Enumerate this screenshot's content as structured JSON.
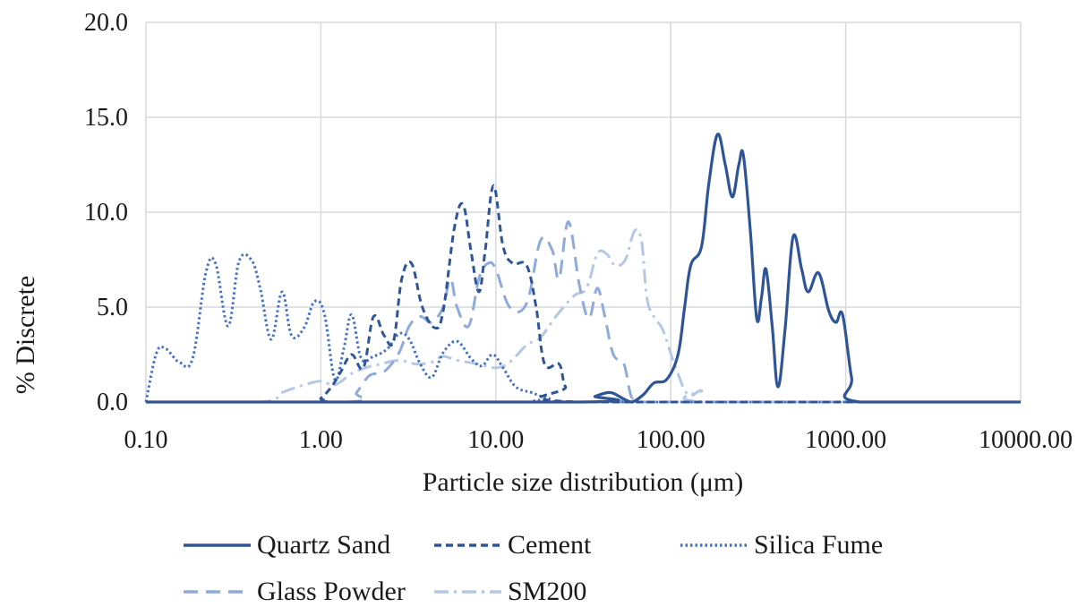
{
  "chart_data": {
    "type": "line",
    "title": "",
    "xlabel": "Particle size distribution (μm)",
    "ylabel": "% Discrete",
    "x_scale": "log",
    "xlim": [
      0.1,
      10000
    ],
    "ylim": [
      0,
      20
    ],
    "x_ticks": [
      0.1,
      1,
      10,
      100,
      1000,
      10000
    ],
    "x_tick_labels": [
      "0.10",
      "1.00",
      "10.00",
      "100.00",
      "1000.00",
      "10000.00"
    ],
    "y_ticks": [
      0,
      5,
      10,
      15,
      20
    ],
    "y_tick_labels": [
      "0.0",
      "5.0",
      "10.0",
      "15.0",
      "20.0"
    ],
    "grid": "major x and y",
    "legend_position": "bottom",
    "series": [
      {
        "name": "Quartz Sand",
        "color": "#2f5597",
        "style": "solid",
        "points": [
          [
            0.1,
            0
          ],
          [
            30,
            0
          ],
          [
            37,
            0.3
          ],
          [
            45,
            0.5
          ],
          [
            53,
            0.2
          ],
          [
            60,
            0
          ],
          [
            70,
            0.4
          ],
          [
            80,
            1
          ],
          [
            95,
            1.2
          ],
          [
            110,
            2.5
          ],
          [
            120,
            5
          ],
          [
            130,
            7.2
          ],
          [
            150,
            8.2
          ],
          [
            165,
            11.5
          ],
          [
            185,
            14.1
          ],
          [
            205,
            12.5
          ],
          [
            225,
            10.8
          ],
          [
            245,
            12.5
          ],
          [
            260,
            13
          ],
          [
            285,
            9
          ],
          [
            310,
            4.4
          ],
          [
            330,
            5.5
          ],
          [
            350,
            7
          ],
          [
            380,
            4
          ],
          [
            410,
            0.8
          ],
          [
            450,
            3.8
          ],
          [
            500,
            8.7
          ],
          [
            560,
            7
          ],
          [
            610,
            5.8
          ],
          [
            700,
            6.8
          ],
          [
            800,
            4.8
          ],
          [
            880,
            4.2
          ],
          [
            960,
            4.6
          ],
          [
            1080,
            1.3
          ],
          [
            1200,
            0
          ],
          [
            10000,
            0
          ]
        ]
      },
      {
        "name": "Cement",
        "color": "#2f5597",
        "style": "dashed",
        "points": [
          [
            0.1,
            0
          ],
          [
            0.9,
            0
          ],
          [
            1.0,
            0.2
          ],
          [
            1.15,
            0.8
          ],
          [
            1.3,
            1.6
          ],
          [
            1.5,
            2.5
          ],
          [
            1.75,
            1.8
          ],
          [
            2.0,
            4.5
          ],
          [
            2.3,
            3.5
          ],
          [
            2.6,
            3.2
          ],
          [
            2.9,
            6.5
          ],
          [
            3.3,
            7.3
          ],
          [
            3.8,
            5
          ],
          [
            4.5,
            3.9
          ],
          [
            5.0,
            4.8
          ],
          [
            5.8,
            9.2
          ],
          [
            6.5,
            10.4
          ],
          [
            7.2,
            8
          ],
          [
            8.0,
            5.8
          ],
          [
            8.7,
            8
          ],
          [
            9.7,
            11.4
          ],
          [
            11,
            8.2
          ],
          [
            12.5,
            7.3
          ],
          [
            15,
            7.2
          ],
          [
            17,
            5
          ],
          [
            19,
            2
          ],
          [
            23,
            2
          ],
          [
            25,
            0.8
          ],
          [
            30,
            0
          ],
          [
            10000,
            0
          ]
        ]
      },
      {
        "name": "Silica Fume",
        "color": "#4472c4",
        "style": "dotted",
        "points": [
          [
            0.1,
            0
          ],
          [
            0.115,
            2.6
          ],
          [
            0.13,
            2.8
          ],
          [
            0.155,
            2.1
          ],
          [
            0.185,
            2.3
          ],
          [
            0.22,
            6.8
          ],
          [
            0.25,
            7.3
          ],
          [
            0.295,
            4
          ],
          [
            0.34,
            7.4
          ],
          [
            0.4,
            7.5
          ],
          [
            0.45,
            6
          ],
          [
            0.52,
            3.3
          ],
          [
            0.6,
            5.8
          ],
          [
            0.68,
            3.5
          ],
          [
            0.8,
            3.9
          ],
          [
            0.92,
            5.3
          ],
          [
            1.05,
            4.6
          ],
          [
            1.2,
            1.2
          ],
          [
            1.35,
            2.8
          ],
          [
            1.5,
            4.6
          ],
          [
            1.7,
            2.3
          ],
          [
            2.0,
            2.4
          ],
          [
            2.4,
            2.8
          ],
          [
            2.8,
            3.6
          ],
          [
            3.2,
            3.3
          ],
          [
            3.7,
            2
          ],
          [
            4.3,
            1.3
          ],
          [
            5.0,
            2.6
          ],
          [
            6.0,
            3.2
          ],
          [
            7.2,
            2.3
          ],
          [
            8.3,
            1.9
          ],
          [
            9.6,
            2.5
          ],
          [
            11,
            1.8
          ],
          [
            13,
            0.8
          ],
          [
            16,
            0.5
          ],
          [
            20,
            0.2
          ],
          [
            30,
            0
          ],
          [
            10000,
            0
          ]
        ]
      },
      {
        "name": "Glass Powder",
        "color": "#8faadc",
        "style": "long-dash",
        "points": [
          [
            0.1,
            0
          ],
          [
            1.4,
            0
          ],
          [
            1.6,
            0.5
          ],
          [
            1.9,
            1.4
          ],
          [
            2.3,
            1.6
          ],
          [
            2.8,
            2.6
          ],
          [
            3.2,
            4
          ],
          [
            3.7,
            4.5
          ],
          [
            4.3,
            4.2
          ],
          [
            5.0,
            5
          ],
          [
            5.5,
            6.5
          ],
          [
            6.0,
            5
          ],
          [
            7.0,
            4
          ],
          [
            8.0,
            6.5
          ],
          [
            9.0,
            7.3
          ],
          [
            10,
            7
          ],
          [
            12,
            5
          ],
          [
            15,
            5.2
          ],
          [
            18,
            8.5
          ],
          [
            21,
            8
          ],
          [
            23,
            6.5
          ],
          [
            26,
            9.5
          ],
          [
            30,
            6.2
          ],
          [
            34,
            4.4
          ],
          [
            38,
            6
          ],
          [
            42,
            4.5
          ],
          [
            47,
            2.5
          ],
          [
            54,
            2
          ],
          [
            60,
            0.2
          ],
          [
            70,
            0
          ],
          [
            10000,
            0
          ]
        ]
      },
      {
        "name": "SM200",
        "color": "#b4c7e7",
        "style": "dash-dot",
        "points": [
          [
            0.1,
            0
          ],
          [
            0.45,
            0
          ],
          [
            0.6,
            0.5
          ],
          [
            0.8,
            0.9
          ],
          [
            1.0,
            1.1
          ],
          [
            1.2,
            0.9
          ],
          [
            1.5,
            1.5
          ],
          [
            1.8,
            1.8
          ],
          [
            2.2,
            2
          ],
          [
            2.8,
            2.2
          ],
          [
            3.5,
            2
          ],
          [
            4.3,
            2.1
          ],
          [
            5.0,
            2.4
          ],
          [
            6.0,
            2.2
          ],
          [
            8.0,
            2
          ],
          [
            10,
            1.8
          ],
          [
            12,
            2.1
          ],
          [
            15,
            3
          ],
          [
            18,
            3.4
          ],
          [
            22,
            4.5
          ],
          [
            28,
            5.6
          ],
          [
            33,
            6
          ],
          [
            38,
            7.8
          ],
          [
            43,
            7.8
          ],
          [
            48,
            7.2
          ],
          [
            55,
            7.5
          ],
          [
            62,
            9
          ],
          [
            68,
            8.5
          ],
          [
            73,
            5.5
          ],
          [
            80,
            4.5
          ],
          [
            90,
            3.8
          ],
          [
            105,
            2
          ],
          [
            125,
            0.4
          ],
          [
            150,
            0.6
          ],
          [
            170,
            0
          ],
          [
            10000,
            0
          ]
        ]
      }
    ]
  }
}
